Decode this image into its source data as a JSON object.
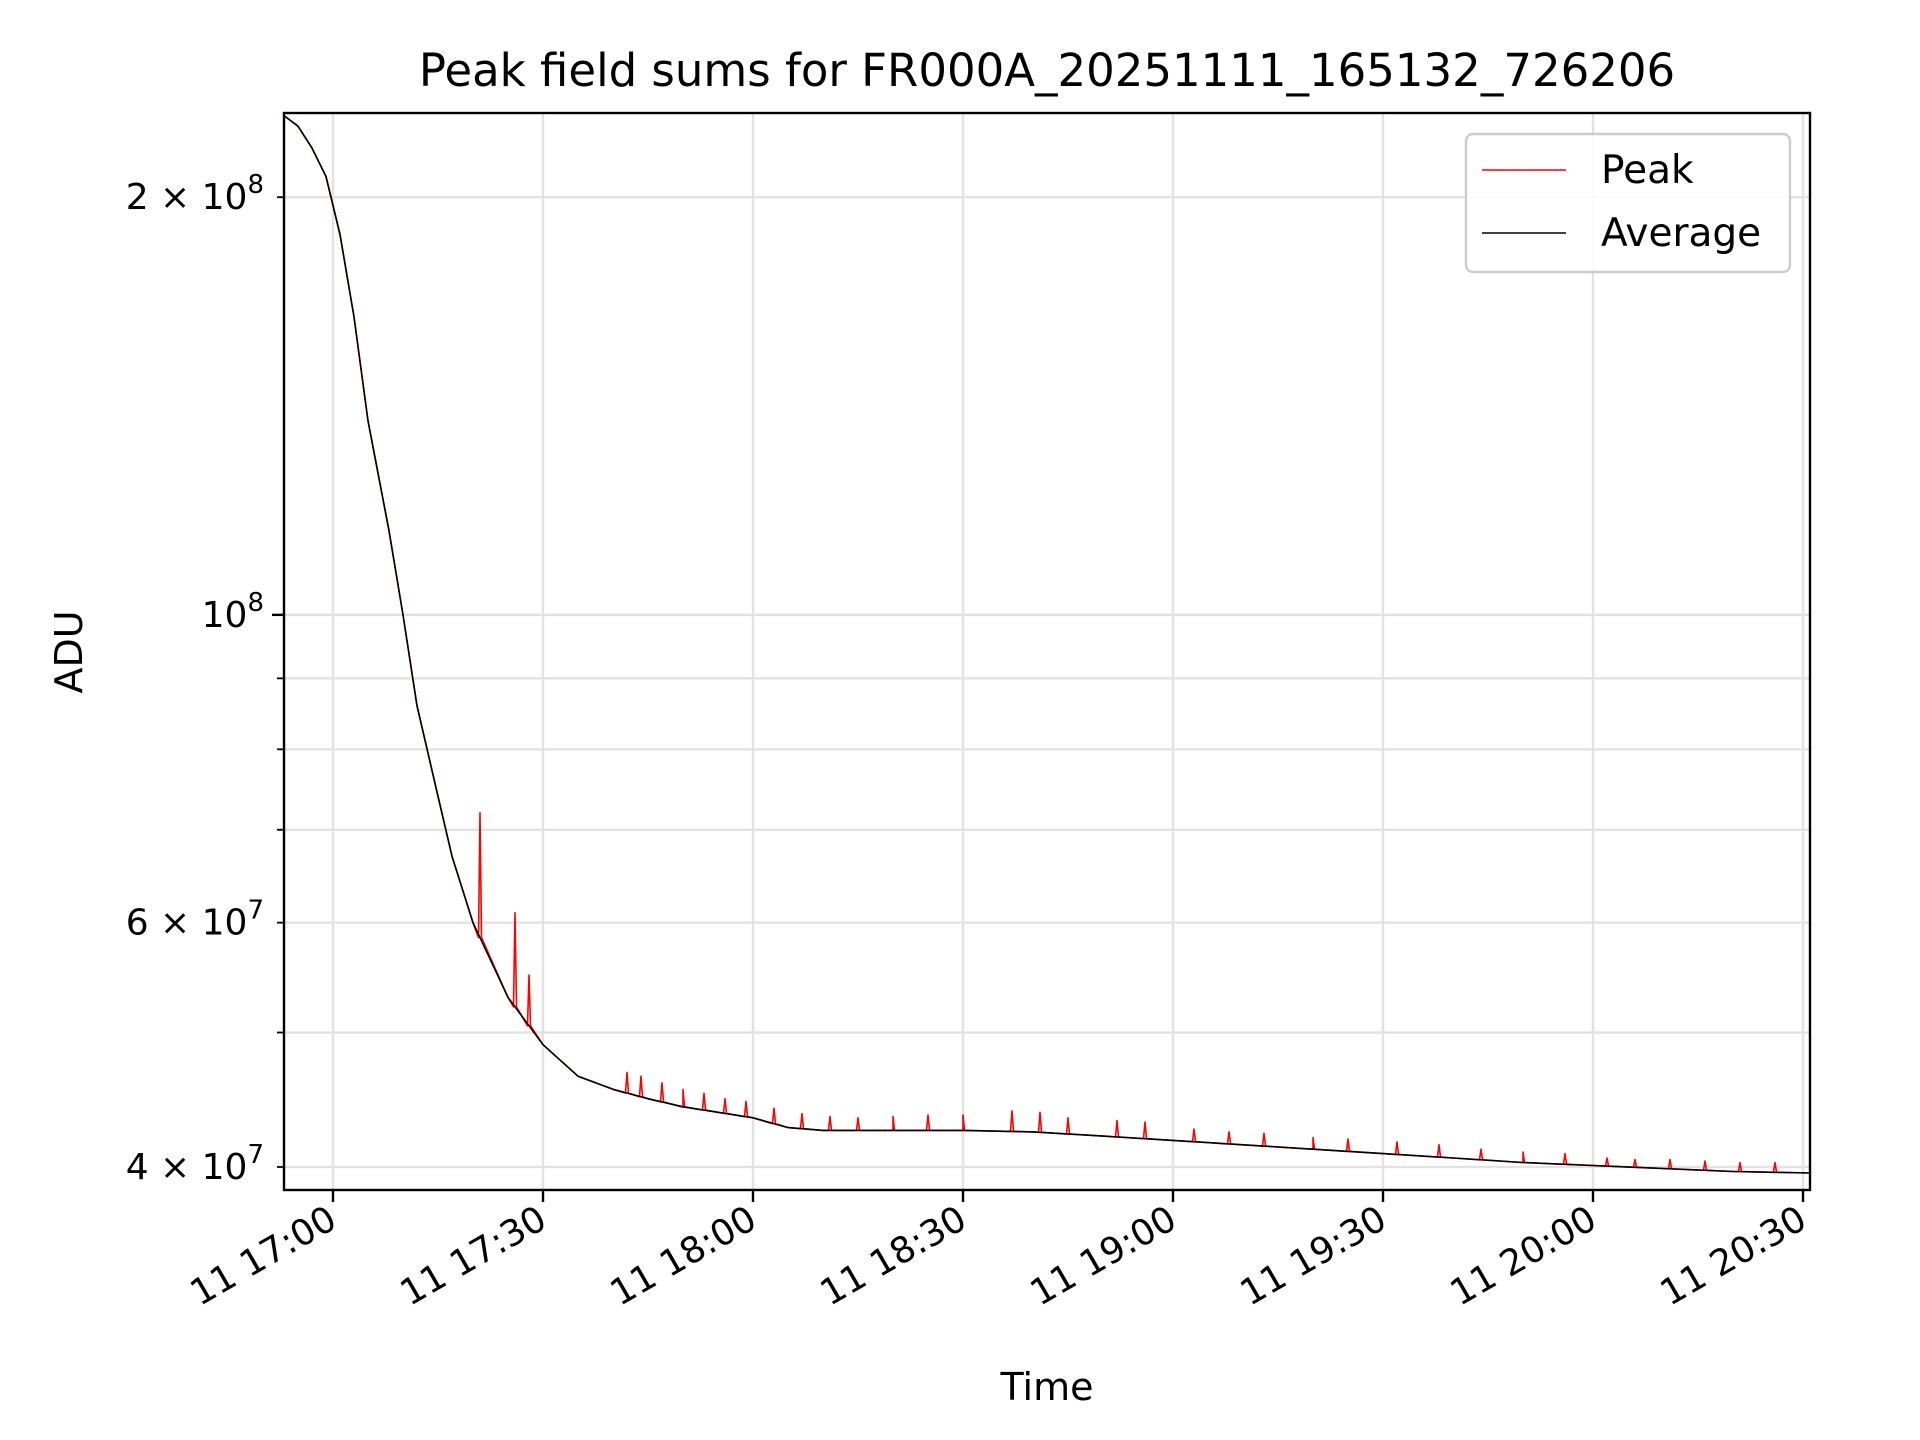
{
  "chart_data": {
    "type": "line",
    "title": "Peak field sums for FR000A_20251111_165132_726206",
    "xlabel": "Time",
    "ylabel": "ADU",
    "x_axis": {
      "type": "time",
      "range": [
        "2025-11-11 16:53",
        "2025-11-11 20:31"
      ],
      "ticks": [
        {
          "time": "2025-11-11 17:00",
          "label": "11 17:00"
        },
        {
          "time": "2025-11-11 17:30",
          "label": "11 17:30"
        },
        {
          "time": "2025-11-11 18:00",
          "label": "11 18:00"
        },
        {
          "time": "2025-11-11 18:30",
          "label": "11 18:30"
        },
        {
          "time": "2025-11-11 19:00",
          "label": "11 19:00"
        },
        {
          "time": "2025-11-11 19:30",
          "label": "11 19:30"
        },
        {
          "time": "2025-11-11 20:00",
          "label": "11 20:00"
        },
        {
          "time": "2025-11-11 20:30",
          "label": "11 20:30"
        }
      ]
    },
    "y_axis": {
      "scale": "log",
      "range": [
        38500000,
        230000000
      ],
      "major_ticks": [
        {
          "value": 100000000,
          "label_base": "10",
          "label_exp": "8"
        }
      ],
      "minor_ticks": [
        {
          "value": 40000000,
          "label_base": "4 × 10",
          "label_exp": "7"
        },
        {
          "value": 50000000,
          "label_base": "",
          "label_exp": ""
        },
        {
          "value": 60000000,
          "label_base": "6 × 10",
          "label_exp": "7"
        },
        {
          "value": 70000000,
          "label_base": "",
          "label_exp": ""
        },
        {
          "value": 80000000,
          "label_base": "",
          "label_exp": ""
        },
        {
          "value": 90000000,
          "label_base": "",
          "label_exp": ""
        },
        {
          "value": 200000000,
          "label_base": "2 × 10",
          "label_exp": "8"
        }
      ]
    },
    "grid": true,
    "legend_position": "top-right",
    "series": [
      {
        "name": "Peak",
        "color": "#ff0000",
        "points": [
          [
            "2025-11-11 16:53",
            229000000
          ],
          [
            "2025-11-11 16:55",
            225000000
          ],
          [
            "2025-11-11 16:57",
            217000000
          ],
          [
            "2025-11-11 16:59",
            207000000
          ],
          [
            "2025-11-11 17:01",
            188000000
          ],
          [
            "2025-11-11 17:03",
            164000000
          ],
          [
            "2025-11-11 17:05",
            138000000
          ],
          [
            "2025-11-11 17:08",
            115000000
          ],
          [
            "2025-11-11 17:10",
            100000000
          ],
          [
            "2025-11-11 17:12",
            86000000
          ],
          [
            "2025-11-11 17:15",
            74000000
          ],
          [
            "2025-11-11 17:17",
            67000000
          ],
          [
            "2025-11-11 17:20",
            60000000
          ],
          [
            "2025-11-11 17:25",
            53000000
          ],
          [
            "2025-11-11 17:30",
            49000000
          ],
          [
            "2025-11-11 17:35",
            46500000
          ],
          [
            "2025-11-11 17:40",
            45500000
          ],
          [
            "2025-11-11 17:45",
            44800000
          ],
          [
            "2025-11-11 17:50",
            44200000
          ],
          [
            "2025-11-11 17:55",
            43800000
          ],
          [
            "2025-11-11 18:00",
            43400000
          ],
          [
            "2025-11-11 18:05",
            42700000
          ],
          [
            "2025-11-11 18:10",
            42500000
          ],
          [
            "2025-11-11 18:20",
            42500000
          ],
          [
            "2025-11-11 18:30",
            42500000
          ],
          [
            "2025-11-11 18:40",
            42400000
          ],
          [
            "2025-11-11 18:50",
            42100000
          ],
          [
            "2025-11-11 19:00",
            41800000
          ],
          [
            "2025-11-11 19:10",
            41500000
          ],
          [
            "2025-11-11 19:20",
            41200000
          ],
          [
            "2025-11-11 19:30",
            40900000
          ],
          [
            "2025-11-11 19:40",
            40600000
          ],
          [
            "2025-11-11 19:50",
            40300000
          ],
          [
            "2025-11-11 20:00",
            40100000
          ],
          [
            "2025-11-11 20:10",
            39900000
          ],
          [
            "2025-11-11 20:20",
            39700000
          ],
          [
            "2025-11-11 20:31",
            39600000
          ]
        ],
        "spikes": [
          [
            "2025-11-11 17:21",
            72000000
          ],
          [
            "2025-11-11 17:26",
            61000000
          ],
          [
            "2025-11-11 17:28",
            55000000
          ],
          [
            "2025-11-11 17:42",
            46800000
          ],
          [
            "2025-11-11 17:44",
            46500000
          ],
          [
            "2025-11-11 17:47",
            46000000
          ],
          [
            "2025-11-11 17:50",
            45500000
          ],
          [
            "2025-11-11 17:53",
            45200000
          ],
          [
            "2025-11-11 17:56",
            44800000
          ],
          [
            "2025-11-11 17:59",
            44600000
          ],
          [
            "2025-11-11 18:03",
            44100000
          ],
          [
            "2025-11-11 18:07",
            43700000
          ],
          [
            "2025-11-11 18:11",
            43500000
          ],
          [
            "2025-11-11 18:15",
            43400000
          ],
          [
            "2025-11-11 18:20",
            43500000
          ],
          [
            "2025-11-11 18:25",
            43600000
          ],
          [
            "2025-11-11 18:30",
            43600000
          ],
          [
            "2025-11-11 18:37",
            43900000
          ],
          [
            "2025-11-11 18:41",
            43800000
          ],
          [
            "2025-11-11 18:45",
            43400000
          ],
          [
            "2025-11-11 18:52",
            43200000
          ],
          [
            "2025-11-11 18:56",
            43100000
          ],
          [
            "2025-11-11 19:03",
            42600000
          ],
          [
            "2025-11-11 19:08",
            42400000
          ],
          [
            "2025-11-11 19:13",
            42300000
          ],
          [
            "2025-11-11 19:20",
            42000000
          ],
          [
            "2025-11-11 19:25",
            41900000
          ],
          [
            "2025-11-11 19:32",
            41700000
          ],
          [
            "2025-11-11 19:38",
            41500000
          ],
          [
            "2025-11-11 19:44",
            41200000
          ],
          [
            "2025-11-11 19:50",
            41000000
          ],
          [
            "2025-11-11 19:56",
            40900000
          ],
          [
            "2025-11-11 20:02",
            40600000
          ],
          [
            "2025-11-11 20:06",
            40500000
          ],
          [
            "2025-11-11 20:11",
            40500000
          ],
          [
            "2025-11-11 20:16",
            40400000
          ],
          [
            "2025-11-11 20:21",
            40300000
          ],
          [
            "2025-11-11 20:26",
            40300000
          ]
        ]
      },
      {
        "name": "Average",
        "color": "#000000",
        "points": [
          [
            "2025-11-11 16:53",
            229000000
          ],
          [
            "2025-11-11 16:55",
            225000000
          ],
          [
            "2025-11-11 16:57",
            217000000
          ],
          [
            "2025-11-11 16:59",
            207000000
          ],
          [
            "2025-11-11 17:01",
            188000000
          ],
          [
            "2025-11-11 17:03",
            164000000
          ],
          [
            "2025-11-11 17:05",
            138000000
          ],
          [
            "2025-11-11 17:08",
            115000000
          ],
          [
            "2025-11-11 17:10",
            100000000
          ],
          [
            "2025-11-11 17:12",
            86000000
          ],
          [
            "2025-11-11 17:15",
            74000000
          ],
          [
            "2025-11-11 17:17",
            67000000
          ],
          [
            "2025-11-11 17:20",
            60000000
          ],
          [
            "2025-11-11 17:25",
            53000000
          ],
          [
            "2025-11-11 17:30",
            49000000
          ],
          [
            "2025-11-11 17:35",
            46500000
          ],
          [
            "2025-11-11 17:40",
            45500000
          ],
          [
            "2025-11-11 17:45",
            44800000
          ],
          [
            "2025-11-11 17:50",
            44200000
          ],
          [
            "2025-11-11 17:55",
            43800000
          ],
          [
            "2025-11-11 18:00",
            43400000
          ],
          [
            "2025-11-11 18:05",
            42700000
          ],
          [
            "2025-11-11 18:10",
            42500000
          ],
          [
            "2025-11-11 18:20",
            42500000
          ],
          [
            "2025-11-11 18:30",
            42500000
          ],
          [
            "2025-11-11 18:40",
            42400000
          ],
          [
            "2025-11-11 18:50",
            42100000
          ],
          [
            "2025-11-11 19:00",
            41800000
          ],
          [
            "2025-11-11 19:10",
            41500000
          ],
          [
            "2025-11-11 19:20",
            41200000
          ],
          [
            "2025-11-11 19:30",
            40900000
          ],
          [
            "2025-11-11 19:40",
            40600000
          ],
          [
            "2025-11-11 19:50",
            40300000
          ],
          [
            "2025-11-11 20:00",
            40100000
          ],
          [
            "2025-11-11 20:10",
            39900000
          ],
          [
            "2025-11-11 20:20",
            39700000
          ],
          [
            "2025-11-11 20:31",
            39600000
          ]
        ]
      }
    ]
  }
}
